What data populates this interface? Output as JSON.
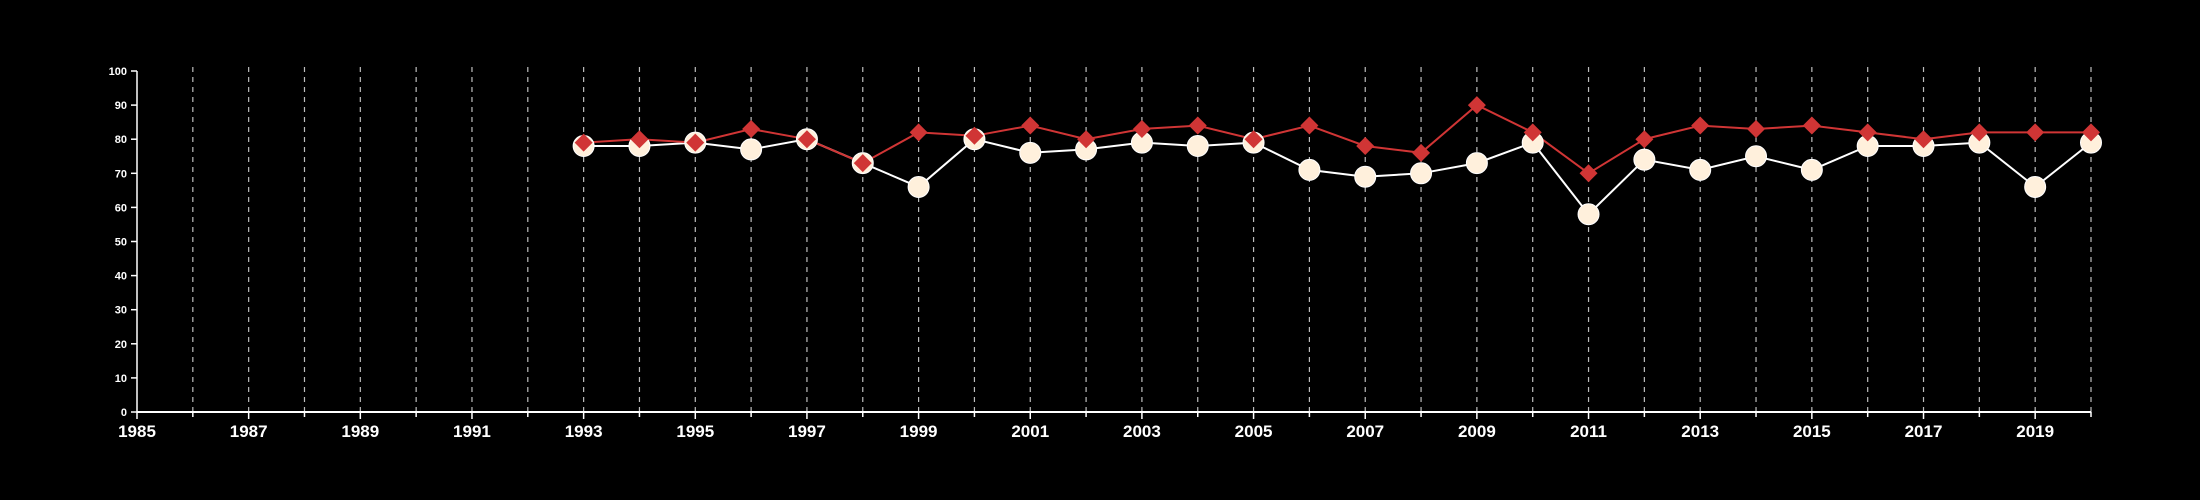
{
  "chart_data": {
    "type": "line",
    "title": "",
    "xlabel": "",
    "ylabel": "",
    "xlim": [
      1985,
      2020
    ],
    "ylim": [
      0,
      100
    ],
    "y_ticks": [
      0,
      10,
      20,
      30,
      40,
      50,
      60,
      70,
      80,
      90,
      100
    ],
    "x_tick_labels": [
      1985,
      1987,
      1989,
      1991,
      1993,
      1995,
      1997,
      1999,
      2001,
      2003,
      2005,
      2007,
      2009,
      2011,
      2013,
      2015,
      2017,
      2019
    ],
    "vertical_gridlines": "dashed, every year",
    "legend": "none",
    "background": "#000000",
    "axis_color": "#ffffff",
    "x": [
      1993,
      1994,
      1995,
      1996,
      1997,
      1998,
      1999,
      2000,
      2001,
      2002,
      2003,
      2004,
      2005,
      2006,
      2007,
      2008,
      2009,
      2010,
      2011,
      2012,
      2013,
      2014,
      2015,
      2016,
      2017,
      2018,
      2019,
      2020
    ],
    "series": [
      {
        "marker": "circle",
        "color": "#fff0dc",
        "line_color": "#ffffff",
        "values": [
          78,
          78,
          79,
          77,
          80,
          73,
          66,
          80,
          76,
          77,
          79,
          78,
          79,
          71,
          69,
          70,
          73,
          79,
          58,
          74,
          71,
          75,
          71,
          78,
          78,
          79,
          66,
          79
        ]
      },
      {
        "marker": "diamond",
        "color": "#d03535",
        "line_color": "#d03535",
        "values": [
          79,
          80,
          79,
          83,
          80,
          73,
          82,
          81,
          84,
          80,
          83,
          84,
          80,
          84,
          78,
          76,
          90,
          82,
          70,
          80,
          84,
          83,
          84,
          82,
          80,
          82,
          82,
          82
        ]
      }
    ]
  }
}
